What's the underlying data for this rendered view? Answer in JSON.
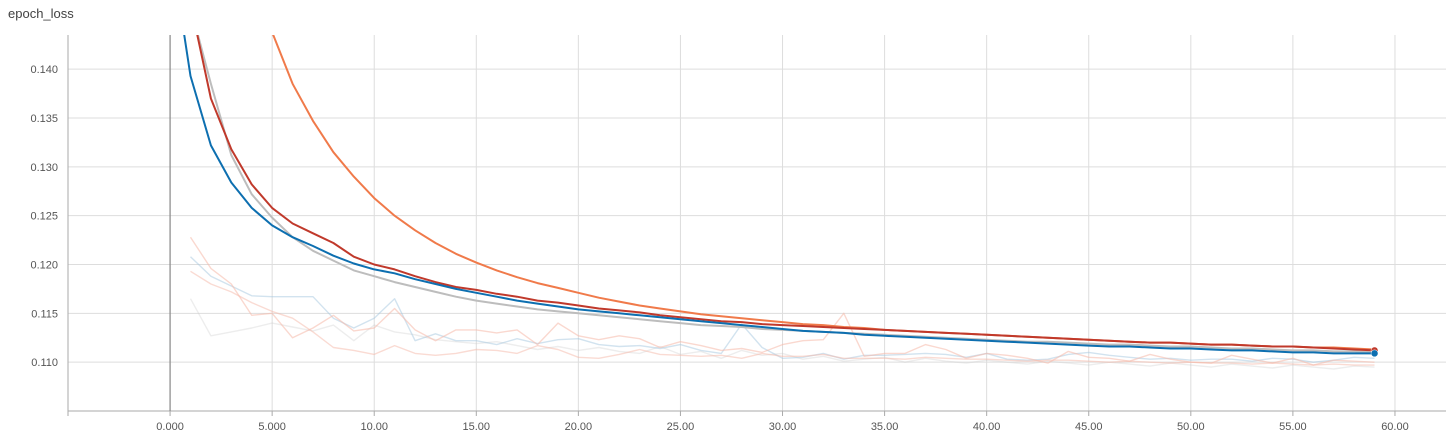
{
  "chart_data": {
    "type": "line",
    "title": "epoch_loss",
    "xlabel": "",
    "ylabel": "",
    "xlim": [
      -5,
      62.5
    ],
    "ylim": [
      0.105,
      0.1435
    ],
    "grid": true,
    "legend": "none",
    "x_ticks": [
      0,
      5,
      10,
      15,
      20,
      25,
      30,
      35,
      40,
      45,
      50,
      55,
      60
    ],
    "x_tick_labels": [
      "0.000",
      "5.000",
      "10.00",
      "15.00",
      "20.00",
      "25.00",
      "30.00",
      "35.00",
      "40.00",
      "45.00",
      "50.00",
      "55.00",
      "60.00"
    ],
    "y_ticks": [
      0.11,
      0.115,
      0.12,
      0.125,
      0.13,
      0.135,
      0.14
    ],
    "y_tick_labels": [
      "0.110",
      "0.115",
      "0.120",
      "0.125",
      "0.130",
      "0.135",
      "0.140"
    ],
    "series": [
      {
        "color": "#cccccc",
        "opacity": 0.35,
        "x": [
          1,
          2,
          3,
          4,
          5,
          6,
          7,
          8,
          9,
          10,
          11,
          12,
          13,
          14,
          15,
          16,
          17,
          18,
          19,
          20,
          21,
          22,
          23,
          24,
          25,
          26,
          27,
          28,
          29,
          30,
          31,
          32,
          33,
          34,
          35,
          36,
          37,
          38,
          39,
          40,
          41,
          42,
          43,
          44,
          45,
          46,
          47,
          48,
          49,
          50,
          51,
          52,
          53,
          54,
          55,
          56,
          57,
          58,
          59
        ],
        "y": [
          0.1165,
          0.1127,
          0.1131,
          0.1135,
          0.114,
          0.1136,
          0.1132,
          0.1138,
          0.1122,
          0.1138,
          0.1131,
          0.1128,
          0.1123,
          0.1121,
          0.1119,
          0.1121,
          0.1117,
          0.1113,
          0.1116,
          0.1112,
          0.1115,
          0.1111,
          0.1109,
          0.1116,
          0.1108,
          0.1111,
          0.1104,
          0.1112,
          0.1107,
          0.1109,
          0.1103,
          0.1106,
          0.1101,
          0.1103,
          0.1105,
          0.11,
          0.1104,
          0.1101,
          0.1099,
          0.1102,
          0.11,
          0.1098,
          0.1101,
          0.1099,
          0.1097,
          0.11,
          0.1098,
          0.1096,
          0.1099,
          0.1097,
          0.1095,
          0.1098,
          0.1096,
          0.1094,
          0.1097,
          0.1095,
          0.1093,
          0.1096,
          0.1095
        ]
      },
      {
        "color": "#a6c8e0",
        "opacity": 0.5,
        "x": [
          1,
          2,
          3,
          4,
          5,
          6,
          7,
          8,
          9,
          10,
          11,
          12,
          13,
          14,
          15,
          16,
          17,
          18,
          19,
          20,
          21,
          22,
          23,
          24,
          25,
          26,
          27,
          28,
          29,
          30,
          31,
          32,
          33,
          34,
          35,
          36,
          37,
          38,
          39,
          40,
          41,
          42,
          43,
          44,
          45,
          46,
          47,
          48,
          49,
          50,
          51,
          52,
          53,
          54,
          55,
          56,
          57,
          58,
          59
        ],
        "y": [
          0.1208,
          0.1188,
          0.1178,
          0.1168,
          0.1167,
          0.1167,
          0.1167,
          0.1145,
          0.1135,
          0.1145,
          0.1165,
          0.1122,
          0.1129,
          0.1122,
          0.1122,
          0.1118,
          0.1124,
          0.1119,
          0.1123,
          0.1124,
          0.1118,
          0.1116,
          0.1117,
          0.1114,
          0.1118,
          0.1112,
          0.1109,
          0.1139,
          0.1115,
          0.1104,
          0.1105,
          0.1109,
          0.1103,
          0.1107,
          0.1107,
          0.1108,
          0.1109,
          0.1108,
          0.1105,
          0.1109,
          0.1103,
          0.1102,
          0.1103,
          0.1108,
          0.111,
          0.1107,
          0.1105,
          0.1103,
          0.1104,
          0.1102,
          0.1103,
          0.1103,
          0.1101,
          0.1104,
          0.1103,
          0.11,
          0.1102,
          0.1105,
          0.1104
        ]
      },
      {
        "color": "#f6b8a8",
        "opacity": 0.55,
        "x": [
          1,
          2,
          3,
          4,
          5,
          6,
          7,
          8,
          9,
          10,
          11,
          12,
          13,
          14,
          15,
          16,
          17,
          18,
          19,
          20,
          21,
          22,
          23,
          24,
          25,
          26,
          27,
          28,
          29,
          30,
          31,
          32,
          33,
          34,
          35,
          36,
          37,
          38,
          39,
          40,
          41,
          42,
          43,
          44,
          45,
          46,
          47,
          48,
          49,
          50,
          51,
          52,
          53,
          54,
          55,
          56,
          57,
          58,
          59
        ],
        "y": [
          0.1228,
          0.1196,
          0.118,
          0.1148,
          0.115,
          0.1125,
          0.1135,
          0.1148,
          0.1132,
          0.1135,
          0.1155,
          0.1133,
          0.1122,
          0.1133,
          0.1133,
          0.113,
          0.1133,
          0.1118,
          0.114,
          0.1127,
          0.1123,
          0.1127,
          0.1124,
          0.1115,
          0.1121,
          0.1117,
          0.1112,
          0.1114,
          0.111,
          0.1118,
          0.1122,
          0.1123,
          0.115,
          0.1106,
          0.1109,
          0.1109,
          0.1118,
          0.1113,
          0.1104,
          0.1109,
          0.1107,
          0.1104,
          0.1099,
          0.1111,
          0.1105,
          0.1104,
          0.1101,
          0.1108,
          0.1103,
          0.11,
          0.1099,
          0.1107,
          0.1103,
          0.1099,
          0.1104,
          0.1097,
          0.1102,
          0.1101,
          0.11
        ]
      },
      {
        "color": "#f6b8a8",
        "opacity": 0.5,
        "x": [
          1,
          2,
          3,
          4,
          5,
          6,
          7,
          8,
          9,
          10,
          11,
          12,
          13,
          14,
          15,
          16,
          17,
          18,
          19,
          20,
          21,
          22,
          23,
          24,
          25,
          26,
          27,
          28,
          29,
          30,
          31,
          32,
          33,
          34,
          35,
          36,
          37,
          38,
          39,
          40,
          41,
          42,
          43,
          44,
          45,
          46,
          47,
          48,
          49,
          50,
          51,
          52,
          53,
          54,
          55,
          56,
          57,
          58,
          59
        ],
        "y": [
          0.1193,
          0.118,
          0.1172,
          0.1161,
          0.1152,
          0.1145,
          0.1131,
          0.1115,
          0.1112,
          0.1108,
          0.1117,
          0.1109,
          0.1107,
          0.1109,
          0.1113,
          0.1112,
          0.1109,
          0.1117,
          0.1113,
          0.1105,
          0.1104,
          0.1108,
          0.1113,
          0.1108,
          0.1107,
          0.1106,
          0.1107,
          0.1104,
          0.1109,
          0.1106,
          0.1106,
          0.1108,
          0.1104,
          0.1104,
          0.1104,
          0.1103,
          0.1105,
          0.1104,
          0.1103,
          0.1103,
          0.1102,
          0.1101,
          0.1102,
          0.1102,
          0.1101,
          0.11,
          0.1101,
          0.11,
          0.1099,
          0.11,
          0.1099,
          0.1099,
          0.1098,
          0.1099,
          0.1098,
          0.1097,
          0.1098,
          0.1097,
          0.1097
        ]
      },
      {
        "color": "#f07a4a",
        "opacity": 1,
        "x": [
          4.8,
          5,
          6,
          7,
          8,
          9,
          10,
          11,
          12,
          13,
          14,
          15,
          16,
          17,
          18,
          19,
          20,
          21,
          22,
          23,
          24,
          25,
          26,
          27,
          28,
          29,
          30,
          31,
          32,
          33,
          34,
          35,
          36,
          37,
          38,
          39,
          40,
          41,
          42,
          43,
          44,
          45,
          46,
          47,
          48,
          49,
          50,
          51,
          52,
          53,
          54,
          55,
          56,
          57,
          58,
          59
        ],
        "y": [
          0.1455,
          0.1438,
          0.1385,
          0.1347,
          0.1315,
          0.129,
          0.1268,
          0.125,
          0.1235,
          0.1222,
          0.1211,
          0.1202,
          0.1194,
          0.1187,
          0.1181,
          0.1176,
          0.1171,
          0.1166,
          0.1162,
          0.1158,
          0.1155,
          0.1152,
          0.1149,
          0.1147,
          0.1145,
          0.1143,
          0.1141,
          0.1139,
          0.1138,
          0.1136,
          0.1135,
          0.1133,
          0.1132,
          0.1131,
          0.113,
          0.1129,
          0.1128,
          0.1127,
          0.1126,
          0.1125,
          0.1124,
          0.1123,
          0.1122,
          0.1121,
          0.112,
          0.112,
          0.1119,
          0.1118,
          0.1118,
          0.1117,
          0.1116,
          0.1116,
          0.1115,
          0.1115,
          0.1114,
          0.1113
        ]
      },
      {
        "color": "#bdbdbd",
        "opacity": 1,
        "x": [
          1.2,
          2,
          3,
          4,
          5,
          6,
          7,
          8,
          9,
          10,
          11,
          12,
          13,
          14,
          15,
          16,
          17,
          18,
          19,
          20,
          21,
          22,
          23,
          24,
          25,
          26,
          27,
          28,
          29,
          30,
          31,
          32,
          33,
          34,
          35,
          36,
          37,
          38,
          39,
          40,
          41,
          42,
          43,
          44,
          45,
          46,
          47,
          48,
          49,
          50,
          51,
          52,
          53,
          54,
          55,
          56,
          57,
          58,
          59
        ],
        "y": [
          0.1448,
          0.1385,
          0.1312,
          0.1272,
          0.1248,
          0.1228,
          0.1214,
          0.1204,
          0.1194,
          0.1188,
          0.1182,
          0.1177,
          0.1172,
          0.1167,
          0.1163,
          0.116,
          0.1157,
          0.1154,
          0.1152,
          0.115,
          0.1148,
          0.1146,
          0.1144,
          0.1142,
          0.114,
          0.1138,
          0.1137,
          0.1136,
          0.1134,
          0.1133,
          0.1132,
          0.1131,
          0.113,
          0.1129,
          0.1128,
          0.1127,
          0.1126,
          0.1125,
          0.1124,
          0.1123,
          0.1122,
          0.1121,
          0.1121,
          0.112,
          0.1119,
          0.1118,
          0.1118,
          0.1117,
          0.1116,
          0.1116,
          0.1115,
          0.1114,
          0.1114,
          0.1113,
          0.1112,
          0.1112,
          0.1111,
          0.1111,
          0.111
        ]
      },
      {
        "color": "#c0392b",
        "opacity": 1,
        "x": [
          1.2,
          2,
          3,
          4,
          5,
          6,
          7,
          8,
          9,
          10,
          11,
          12,
          13,
          14,
          15,
          16,
          17,
          18,
          19,
          20,
          21,
          22,
          23,
          24,
          25,
          26,
          27,
          28,
          29,
          30,
          31,
          32,
          33,
          34,
          35,
          36,
          37,
          38,
          39,
          40,
          41,
          42,
          43,
          44,
          45,
          46,
          47,
          48,
          49,
          50,
          51,
          52,
          53,
          54,
          55,
          56,
          57,
          58,
          59
        ],
        "y": [
          0.1448,
          0.137,
          0.1318,
          0.1282,
          0.1258,
          0.1242,
          0.1232,
          0.1222,
          0.1208,
          0.12,
          0.1195,
          0.1188,
          0.1182,
          0.1177,
          0.1174,
          0.117,
          0.1167,
          0.1163,
          0.1161,
          0.1158,
          0.1155,
          0.1153,
          0.1151,
          0.1148,
          0.1146,
          0.1144,
          0.1142,
          0.1141,
          0.1139,
          0.1138,
          0.1137,
          0.1136,
          0.1135,
          0.1134,
          0.1133,
          0.1132,
          0.1131,
          0.113,
          0.1129,
          0.1128,
          0.1127,
          0.1126,
          0.1125,
          0.1124,
          0.1123,
          0.1122,
          0.1121,
          0.112,
          0.112,
          0.1119,
          0.1118,
          0.1118,
          0.1117,
          0.1116,
          0.1116,
          0.1115,
          0.1114,
          0.1113,
          0.1112
        ]
      },
      {
        "color": "#0d6fb0",
        "opacity": 1,
        "x": [
          0.6,
          1,
          2,
          3,
          4,
          5,
          6,
          7,
          8,
          9,
          10,
          11,
          12,
          13,
          14,
          15,
          16,
          17,
          18,
          19,
          20,
          21,
          22,
          23,
          24,
          25,
          26,
          27,
          28,
          29,
          30,
          31,
          32,
          33,
          34,
          35,
          36,
          37,
          38,
          39,
          40,
          41,
          42,
          43,
          44,
          45,
          46,
          47,
          48,
          49,
          50,
          51,
          52,
          53,
          54,
          55,
          56,
          57,
          58,
          59
        ],
        "y": [
          0.1448,
          0.1393,
          0.1322,
          0.1284,
          0.1258,
          0.124,
          0.1228,
          0.1219,
          0.1209,
          0.1201,
          0.1195,
          0.1191,
          0.1185,
          0.118,
          0.1175,
          0.1171,
          0.1167,
          0.1163,
          0.116,
          0.1157,
          0.1154,
          0.1152,
          0.115,
          0.1148,
          0.1146,
          0.1144,
          0.1142,
          0.114,
          0.1138,
          0.1136,
          0.1134,
          0.1132,
          0.1131,
          0.113,
          0.1128,
          0.1127,
          0.1126,
          0.1125,
          0.1124,
          0.1123,
          0.1122,
          0.1121,
          0.112,
          0.1119,
          0.1118,
          0.1117,
          0.1116,
          0.1116,
          0.1115,
          0.1114,
          0.1114,
          0.1113,
          0.1112,
          0.1112,
          0.1111,
          0.111,
          0.111,
          0.1109,
          0.1109,
          0.1109
        ]
      }
    ],
    "end_markers": [
      {
        "x": 59,
        "y": 0.1112,
        "color": "#c0392b"
      },
      {
        "x": 59,
        "y": 0.1109,
        "color": "#0d6fb0"
      }
    ]
  }
}
